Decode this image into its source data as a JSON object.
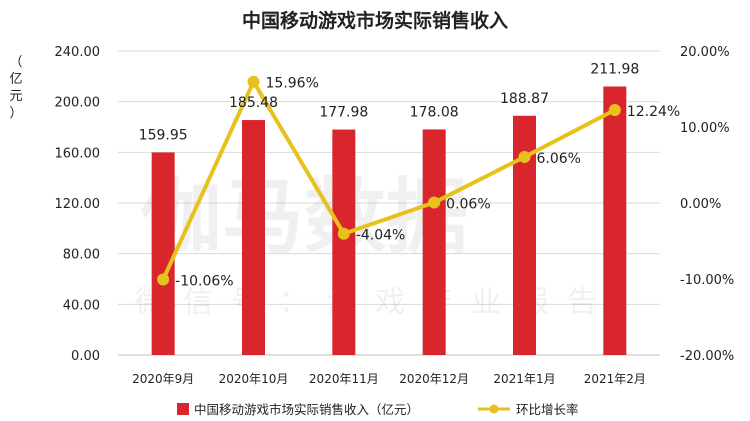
{
  "chart_data": {
    "type": "bar",
    "title": "中国移动游戏市场实际销售收入",
    "ylabel": "（亿元）",
    "categories": [
      "2020年9月",
      "2020年10月",
      "2020年11月",
      "2020年12月",
      "2021年1月",
      "2021年2月"
    ],
    "ylim": [
      0,
      240
    ],
    "yticks": [
      "0.00",
      "40.00",
      "80.00",
      "120.00",
      "160.00",
      "200.00",
      "240.00"
    ],
    "y2lim": [
      -20,
      20
    ],
    "y2ticks": [
      "-20.00%",
      "-10.00%",
      "0.00%",
      "10.00%",
      "20.00%"
    ],
    "grid": true,
    "legend_position": "bottom",
    "series": [
      {
        "name": "中国移动游戏市场实际销售收入（亿元）",
        "type": "bar",
        "axis": "left",
        "color": "#d9262c",
        "values": [
          159.95,
          185.48,
          177.98,
          178.08,
          188.87,
          211.98
        ],
        "labels": [
          "159.95",
          "185.48",
          "177.98",
          "178.08",
          "188.87",
          "211.98"
        ]
      },
      {
        "name": "环比增长率",
        "type": "line",
        "axis": "right",
        "color": "#e8c21c",
        "values": [
          -10.06,
          15.96,
          -4.04,
          0.06,
          6.06,
          12.24
        ],
        "labels": [
          "-10.06%",
          "15.96%",
          "-4.04%",
          "0.06%",
          "6.06%",
          "12.24%"
        ]
      }
    ],
    "watermark": [
      "伽马数据",
      "微信号：游戏产业报告"
    ]
  }
}
